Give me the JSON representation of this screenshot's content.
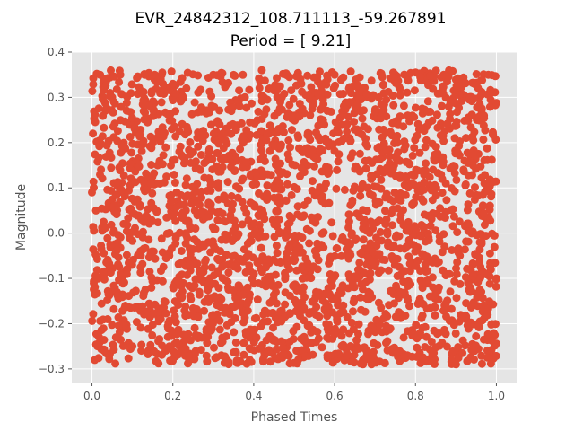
{
  "chart_data": {
    "type": "scatter",
    "title": "EVR_24842312_108.711113_-59.267891",
    "subtitle": "Period = [ 9.21]",
    "xlabel": "Phased Times",
    "ylabel": "Magnitude",
    "xlim": [
      -0.05,
      1.05
    ],
    "ylim": [
      -0.33,
      0.4
    ],
    "xticks": [
      0.0,
      0.2,
      0.4,
      0.6,
      0.8,
      1.0
    ],
    "xtick_labels": [
      "0.0",
      "0.2",
      "0.4",
      "0.6",
      "0.8",
      "1.0"
    ],
    "yticks": [
      -0.3,
      -0.2,
      -0.1,
      0.0,
      0.1,
      0.2,
      0.3,
      0.4
    ],
    "ytick_labels": [
      "−0.3",
      "−0.2",
      "−0.1",
      "0.0",
      "0.1",
      "0.2",
      "0.3",
      "0.4"
    ],
    "grid": true,
    "style": "ggplot",
    "marker_color": "#E24A33",
    "background_color": "#E5E5E5",
    "series": [
      {
        "points_x_range": [
          0.0,
          1.0
        ],
        "points_y_range": [
          -0.29,
          0.36
        ],
        "sample_points": [
          [
            0.0,
            0.09
          ],
          [
            0.02,
            0.35
          ],
          [
            0.03,
            -0.26
          ],
          [
            0.05,
            0.3
          ],
          [
            0.07,
            0.35
          ],
          [
            0.1,
            -0.25
          ],
          [
            0.13,
            0.35
          ],
          [
            0.17,
            0.34
          ],
          [
            0.2,
            0.33
          ],
          [
            0.24,
            -0.28
          ],
          [
            0.3,
            0.35
          ],
          [
            0.32,
            -0.27
          ],
          [
            0.39,
            -0.28
          ],
          [
            0.42,
            0.36
          ],
          [
            0.48,
            0.35
          ],
          [
            0.51,
            -0.28
          ],
          [
            0.6,
            0.35
          ],
          [
            0.63,
            -0.27
          ],
          [
            0.67,
            -0.29
          ],
          [
            0.75,
            0.35
          ],
          [
            0.78,
            -0.27
          ],
          [
            0.87,
            0.35
          ],
          [
            0.9,
            -0.29
          ],
          [
            0.98,
            0.35
          ],
          [
            1.0,
            -0.1
          ]
        ]
      }
    ]
  }
}
